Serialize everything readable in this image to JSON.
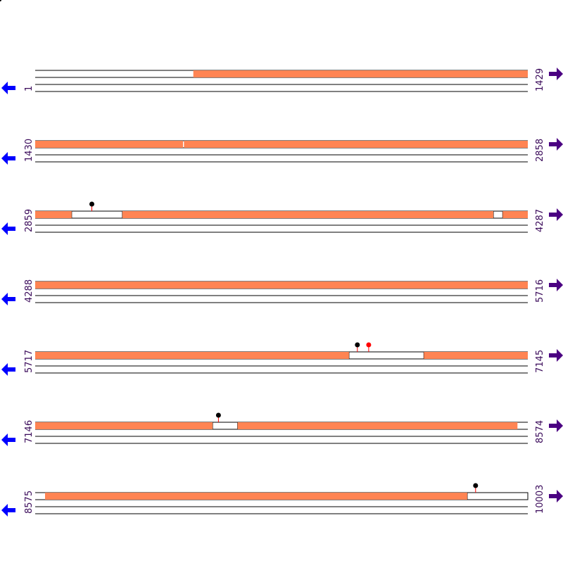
{
  "colors": {
    "segment": "#ff8453",
    "line": "#000000",
    "label": "#3a0a5a",
    "left_arrow": "#0000ff",
    "right_arrow": "#4b0082",
    "marker_black": "#000000",
    "marker_red": "#ff0000",
    "stem": "#ff0000"
  },
  "icons": {
    "left": "left-arrow-icon",
    "right": "right-arrow-icon"
  },
  "rows": [
    {
      "start": "1",
      "end": "1429",
      "segments": [
        [
          0.321,
          1.0
        ]
      ],
      "boxes": [],
      "markers": []
    },
    {
      "start": "1430",
      "end": "2858",
      "segments": [
        [
          0.0,
          0.3
        ],
        [
          0.302,
          1.0
        ]
      ],
      "boxes": [],
      "markers": []
    },
    {
      "start": "2859",
      "end": "4287",
      "segments": [
        [
          0.0,
          0.074
        ],
        [
          0.177,
          0.93
        ],
        [
          0.949,
          1.0
        ]
      ],
      "boxes": [
        [
          0.074,
          0.177
        ],
        [
          0.93,
          0.949
        ]
      ],
      "markers": [
        {
          "x": 0.115,
          "color": "black"
        }
      ]
    },
    {
      "start": "4288",
      "end": "5716",
      "segments": [
        [
          0.0,
          1.0
        ]
      ],
      "boxes": [],
      "markers": []
    },
    {
      "start": "5717",
      "end": "7145",
      "segments": [
        [
          0.0,
          0.637
        ],
        [
          0.789,
          1.0
        ]
      ],
      "boxes": [
        [
          0.637,
          0.789
        ]
      ],
      "markers": [
        {
          "x": 0.654,
          "color": "black"
        },
        {
          "x": 0.677,
          "color": "red"
        }
      ]
    },
    {
      "start": "7146",
      "end": "8574",
      "segments": [
        [
          0.0,
          0.36
        ],
        [
          0.411,
          0.979
        ]
      ],
      "boxes": [
        [
          0.36,
          0.411
        ]
      ],
      "markers": [
        {
          "x": 0.372,
          "color": "black"
        }
      ]
    },
    {
      "start": "8575",
      "end": "10003",
      "segments": [
        [
          0.02,
          0.877
        ]
      ],
      "boxes": [
        [
          0.877,
          1.0
        ]
      ],
      "markers": [
        {
          "x": 0.894,
          "color": "black"
        }
      ]
    }
  ]
}
